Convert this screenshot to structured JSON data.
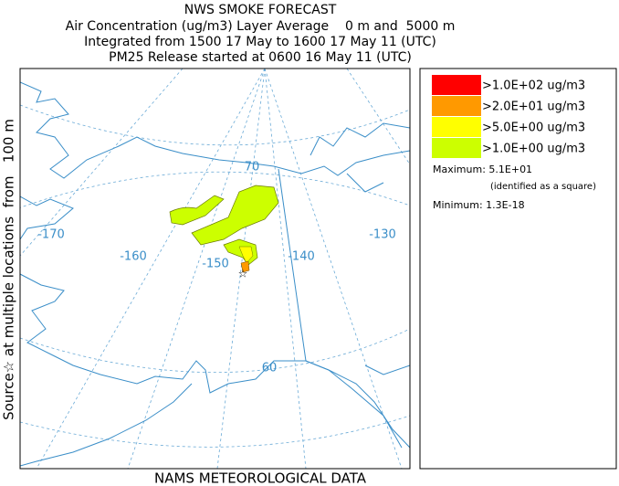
{
  "header": {
    "title": "NWS SMOKE FORECAST",
    "lines": [
      "Air Concentration (ug/m3) Layer Average    0 m and  5000 m",
      "Integrated from 1500 17 May to 1600 17 May 11 (UTC)",
      "PM25 Release started at 0600 16 May 11 (UTC)"
    ]
  },
  "side_label": "Source☆ at multiple locations  from   100 m",
  "footer": "NAMS METEOROLOGICAL DATA",
  "map_labels": [
    "-170",
    "-160",
    "-150",
    "-140",
    "-130",
    "70",
    "60"
  ],
  "legend": {
    "entries": [
      {
        "label": ">1.0E+02 ug/m3",
        "color": "#ff0000"
      },
      {
        "label": ">2.0E+01 ug/m3",
        "color": "#ff9900"
      },
      {
        "label": ">5.0E+00 ug/m3",
        "color": "#ffff00"
      },
      {
        "label": ">1.0E+00 ug/m3",
        "color": "#ccff00"
      }
    ],
    "maximum": "Maximum: 5.1E+01",
    "maximum_note": "(identified as a square)",
    "minimum": "Minimum: 1.3E-18"
  }
}
